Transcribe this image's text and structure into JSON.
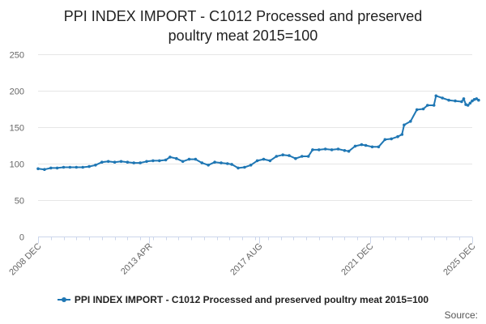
{
  "title": {
    "line1": "PPI INDEX IMPORT - C1012 Processed and preserved",
    "line2": "poultry meat 2015=100"
  },
  "source_label": "Source:",
  "colors": {
    "series": "#1f77b4",
    "grid": "#e6e6e6",
    "axis": "#ccd6eb"
  },
  "chart_data": {
    "type": "line",
    "x_tick_labels": [
      "2008 DEC",
      "2013 APR",
      "2017 AUG",
      "2021 DEC",
      "2025 DEC"
    ],
    "x_tick_dates": [
      "2008-12",
      "2013-04",
      "2017-08",
      "2021-12",
      "2025-12"
    ],
    "y_ticks": [
      0,
      50,
      100,
      150,
      200,
      250
    ],
    "ylim": [
      0,
      250
    ],
    "grid": true,
    "legend_position": "bottom",
    "series": [
      {
        "name": "PPI INDEX IMPORT - C1012 Processed and preserved poultry meat 2015=100",
        "points": [
          [
            "2008-12",
            93
          ],
          [
            "2009-03",
            92
          ],
          [
            "2009-06",
            94
          ],
          [
            "2009-09",
            94
          ],
          [
            "2009-12",
            95
          ],
          [
            "2010-03",
            95
          ],
          [
            "2010-06",
            95
          ],
          [
            "2010-09",
            95
          ],
          [
            "2010-12",
            96
          ],
          [
            "2011-03",
            98
          ],
          [
            "2011-06",
            102
          ],
          [
            "2011-09",
            103
          ],
          [
            "2011-12",
            102
          ],
          [
            "2012-03",
            103
          ],
          [
            "2012-06",
            102
          ],
          [
            "2012-09",
            101
          ],
          [
            "2012-12",
            101
          ],
          [
            "2013-03",
            103
          ],
          [
            "2013-06",
            104
          ],
          [
            "2013-09",
            104
          ],
          [
            "2013-12",
            105
          ],
          [
            "2014-02",
            109
          ],
          [
            "2014-05",
            107
          ],
          [
            "2014-08",
            103
          ],
          [
            "2014-11",
            106
          ],
          [
            "2015-02",
            106
          ],
          [
            "2015-05",
            101
          ],
          [
            "2015-08",
            98
          ],
          [
            "2015-11",
            102
          ],
          [
            "2016-02",
            101
          ],
          [
            "2016-05",
            100
          ],
          [
            "2016-07",
            99
          ],
          [
            "2016-10",
            94
          ],
          [
            "2017-01",
            95
          ],
          [
            "2017-04",
            98
          ],
          [
            "2017-07",
            104
          ],
          [
            "2017-10",
            106
          ],
          [
            "2018-01",
            104
          ],
          [
            "2018-04",
            110
          ],
          [
            "2018-07",
            112
          ],
          [
            "2018-10",
            111
          ],
          [
            "2019-01",
            107
          ],
          [
            "2019-04",
            110
          ],
          [
            "2019-07",
            110
          ],
          [
            "2019-09",
            119
          ],
          [
            "2019-12",
            119
          ],
          [
            "2020-03",
            120
          ],
          [
            "2020-06",
            119
          ],
          [
            "2020-09",
            120
          ],
          [
            "2020-12",
            118
          ],
          [
            "2021-02",
            117
          ],
          [
            "2021-05",
            124
          ],
          [
            "2021-08",
            126
          ],
          [
            "2021-10",
            125
          ],
          [
            "2022-01",
            123
          ],
          [
            "2022-04",
            123
          ],
          [
            "2022-07",
            133
          ],
          [
            "2022-10",
            134
          ],
          [
            "2023-01",
            137
          ],
          [
            "2023-03",
            140
          ],
          [
            "2023-04",
            153
          ],
          [
            "2023-07",
            158
          ],
          [
            "2023-10",
            174
          ],
          [
            "2024-01",
            175
          ],
          [
            "2024-03",
            180
          ],
          [
            "2024-06",
            180
          ],
          [
            "2024-07",
            193
          ],
          [
            "2024-10",
            190
          ],
          [
            "2025-01",
            187
          ],
          [
            "2025-04",
            186
          ],
          [
            "2025-07",
            185
          ],
          [
            "2025-08",
            189
          ],
          [
            "2025-09",
            181
          ],
          [
            "2025-10",
            180
          ],
          [
            "2025-11",
            183
          ],
          [
            "2025-12",
            186
          ],
          [
            "2026-01",
            188
          ],
          [
            "2026-02",
            189
          ],
          [
            "2026-03",
            187
          ]
        ]
      }
    ]
  }
}
